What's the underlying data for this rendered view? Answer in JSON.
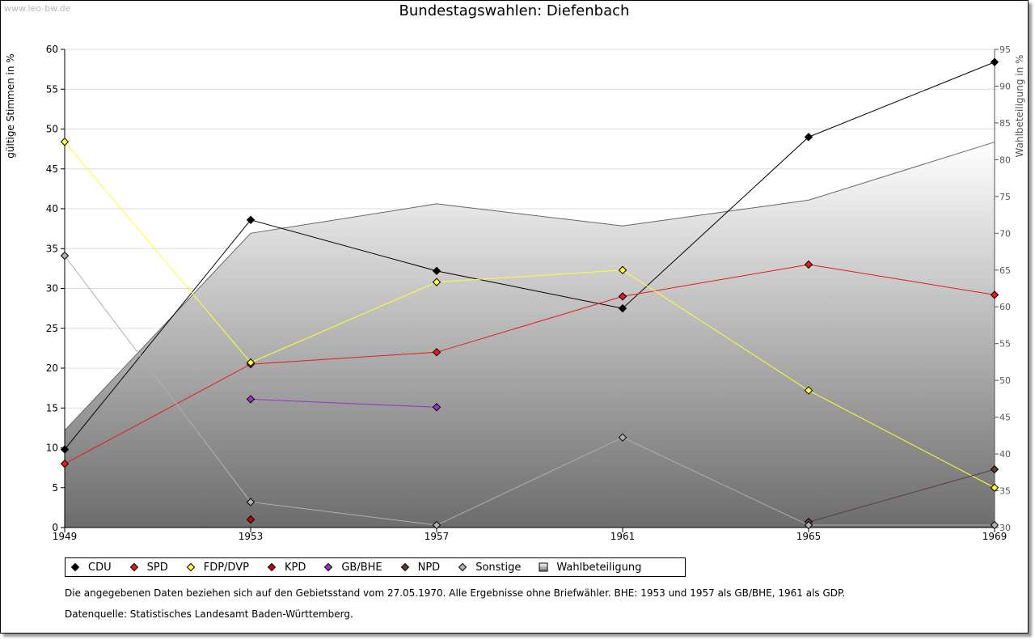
{
  "header": {
    "watermark": "www.leo-bw.de",
    "title": "Bundestagswahlen: Diefenbach"
  },
  "footer": {
    "note": "Die angegebenen Daten beziehen sich auf den Gebietsstand vom 27.05.1970. Alle Ergebnisse ohne Briefwähler. BHE: 1953 und 1957 als GB/BHE, 1961 als GDP.",
    "source": "Datenquelle: Statistisches Landesamt Baden-Württemberg."
  },
  "chart_data": {
    "type": "line",
    "title": "Bundestagswahlen: Diefenbach",
    "ylabel": "gültige Stimmen in %",
    "y2label": "Wahlbeteiligung in %",
    "x": [
      "1949",
      "1953",
      "1957",
      "1961",
      "1965",
      "1969"
    ],
    "ylim": [
      0,
      60
    ],
    "yticks": [
      0,
      5,
      10,
      15,
      20,
      25,
      30,
      35,
      40,
      45,
      50,
      55,
      60
    ],
    "y2lim": [
      30,
      95
    ],
    "y2ticks": [
      30,
      35,
      40,
      45,
      50,
      55,
      60,
      65,
      70,
      75,
      80,
      85,
      90,
      95
    ],
    "grid": true,
    "legend": "bottom",
    "series": [
      {
        "name": "CDU",
        "color": "#000000",
        "values": [
          9.8,
          38.6,
          32.2,
          27.5,
          49.0,
          58.4
        ]
      },
      {
        "name": "SPD",
        "color": "#e41a1c",
        "values": [
          8.0,
          20.5,
          22.0,
          29.0,
          33.0,
          29.2
        ]
      },
      {
        "name": "FDP/DVP",
        "color": "#ffff33",
        "values": [
          48.4,
          20.7,
          30.8,
          32.3,
          17.2,
          5.0
        ]
      },
      {
        "name": "KPD",
        "color": "#cc0000",
        "values": [
          null,
          1.0,
          null,
          null,
          null,
          null
        ]
      },
      {
        "name": "GB/BHE",
        "color": "#9933cc",
        "values": [
          null,
          16.1,
          15.1,
          null,
          null,
          null
        ]
      },
      {
        "name": "NPD",
        "color": "#5c4033",
        "values": [
          null,
          null,
          null,
          null,
          0.7,
          7.3
        ]
      },
      {
        "name": "Sonstige",
        "color": "#b0b0b0",
        "values": [
          34.1,
          3.2,
          0.3,
          11.3,
          0.3,
          0.3
        ]
      }
    ],
    "turnout": {
      "name": "Wahlbeteiligung",
      "axis": "right",
      "values": [
        43.2,
        70.0,
        74.0,
        71.0,
        74.5,
        82.4
      ]
    }
  }
}
